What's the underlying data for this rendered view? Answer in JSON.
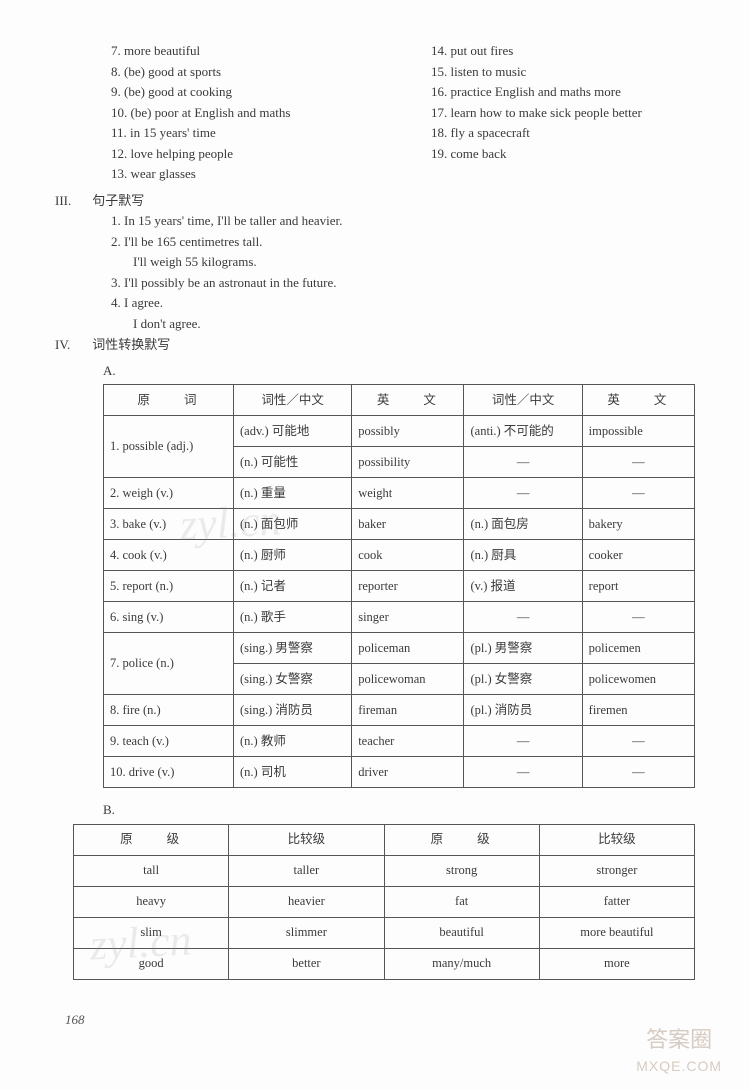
{
  "top_list_left": [
    "7. more beautiful",
    "8. (be) good at sports",
    "9. (be) good at cooking",
    "10. (be) poor at English and maths",
    "11. in 15 years' time",
    "12. love helping people",
    "13. wear glasses"
  ],
  "top_list_right": [
    "14. put out fires",
    "15. listen to music",
    "16. practice English and maths more",
    "17. learn how to make sick people better",
    "18. fly a spacecraft",
    "19. come back"
  ],
  "sectIII": {
    "label": "III.",
    "title": "句子默写",
    "lines": [
      "1. In 15 years' time, I'll be taller and heavier.",
      "2. I'll be 165 centimetres tall.",
      "   I'll weigh 55 kilograms.",
      "3. I'll possibly be an astronaut in the future.",
      "4. I agree.",
      "   I don't agree."
    ]
  },
  "sectIV": {
    "label": "IV.",
    "title": "词性转换默写",
    "subA": "A.",
    "subB": "B."
  },
  "tableA": {
    "headers": [
      "原　　词",
      "词性／中文",
      "英　　文",
      "词性／中文",
      "英　　文"
    ],
    "rows": [
      {
        "rowspan": 2,
        "c0": "1. possible (adj.)",
        "c1": "(adv.) 可能地",
        "c2": "possibly",
        "c3": "(anti.) 不可能的",
        "c4": "impossible"
      },
      {
        "c1": "(n.) 可能性",
        "c2": "possibility",
        "c3": "—",
        "c4": "—"
      },
      {
        "c0": "2. weigh (v.)",
        "c1": "(n.) 重量",
        "c2": "weight",
        "c3": "—",
        "c4": "—"
      },
      {
        "c0": "3. bake (v.)",
        "c1": "(n.) 面包师",
        "c2": "baker",
        "c3": "(n.) 面包房",
        "c4": "bakery"
      },
      {
        "c0": "4. cook (v.)",
        "c1": "(n.) 厨师",
        "c2": "cook",
        "c3": "(n.) 厨具",
        "c4": "cooker"
      },
      {
        "c0": "5. report (n.)",
        "c1": "(n.) 记者",
        "c2": "reporter",
        "c3": "(v.) 报道",
        "c4": "report"
      },
      {
        "c0": "6. sing (v.)",
        "c1": "(n.) 歌手",
        "c2": "singer",
        "c3": "—",
        "c4": "—"
      },
      {
        "rowspan": 2,
        "c0": "7. police (n.)",
        "c1": "(sing.) 男警察",
        "c2": "policeman",
        "c3": "(pl.) 男警察",
        "c4": "policemen"
      },
      {
        "c1": "(sing.) 女警察",
        "c2": "policewoman",
        "c3": "(pl.) 女警察",
        "c4": "policewomen"
      },
      {
        "c0": "8. fire (n.)",
        "c1": "(sing.) 消防员",
        "c2": "fireman",
        "c3": "(pl.) 消防员",
        "c4": "firemen"
      },
      {
        "c0": "9. teach (v.)",
        "c1": "(n.) 教师",
        "c2": "teacher",
        "c3": "—",
        "c4": "—"
      },
      {
        "c0": "10. drive (v.)",
        "c1": "(n.) 司机",
        "c2": "driver",
        "c3": "—",
        "c4": "—"
      }
    ]
  },
  "tableB": {
    "headers": [
      "原　　级",
      "比较级",
      "原　　级",
      "比较级"
    ],
    "rows": [
      [
        "tall",
        "taller",
        "strong",
        "stronger"
      ],
      [
        "heavy",
        "heavier",
        "fat",
        "fatter"
      ],
      [
        "slim",
        "slimmer",
        "beautiful",
        "more beautiful"
      ],
      [
        "good",
        "better",
        "many/much",
        "more"
      ]
    ]
  },
  "page_number": "168",
  "watermarks": {
    "w1": "zyl.cn",
    "w2": "zyl.cn",
    "corner1": "答案圈",
    "corner2": "MXQE.COM"
  }
}
